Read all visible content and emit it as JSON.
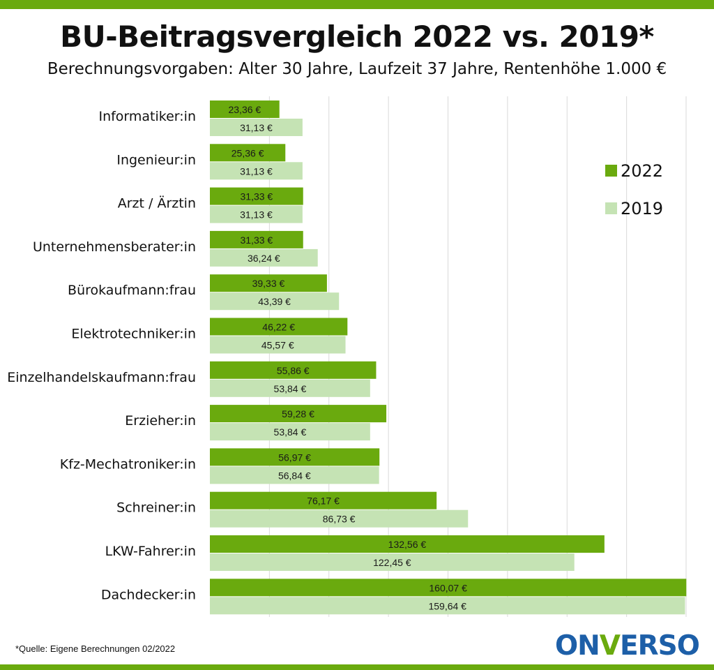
{
  "header": {
    "title": "BU-Beitragsvergleich 2022 vs. 2019*",
    "subtitle": "Berechnungsvorgaben: Alter 30 Jahre, Laufzeit 37 Jahre, Rentenhöhe 1.000 €"
  },
  "footnote": "*Quelle: Eigene Berechnungen 02/2022",
  "logo": {
    "part1": "ON",
    "part2": "V",
    "part3": "ERSO"
  },
  "colors": {
    "accent": "#6aaa0e",
    "series2022": "#6aaa0e",
    "series2019": "#c5e3b4",
    "logo_blue": "#1d5fa8"
  },
  "chart_data": {
    "type": "bar",
    "orientation": "horizontal",
    "title": "BU-Beitragsvergleich 2022 vs. 2019*",
    "subtitle": "Berechnungsvorgaben: Alter 30 Jahre, Laufzeit 37 Jahre, Rentenhöhe 1.000 €",
    "categories": [
      "Informatiker:in",
      "Ingenieur:in",
      "Arzt / Ärztin",
      "Unternehmensberater:in",
      "Bürokaufmann:frau",
      "Elektrotechniker:in",
      "Einzelhandelskaufmann:frau",
      "Erzieher:in",
      "Kfz-Mechatroniker:in",
      "Schreiner:in",
      "LKW-Fahrer:in",
      "Dachdecker:in"
    ],
    "series": [
      {
        "name": "2022",
        "color": "#6aaa0e",
        "values": [
          23.36,
          25.36,
          31.33,
          31.33,
          39.33,
          46.22,
          55.86,
          59.28,
          56.97,
          76.17,
          132.56,
          160.07
        ],
        "labels": [
          "23,36 €",
          "25,36 €",
          "31,33 €",
          "31,33 €",
          "39,33 €",
          "46,22 €",
          "55,86 €",
          "59,28 €",
          "56,97 €",
          "76,17 €",
          "132,56 €",
          "160,07 €"
        ]
      },
      {
        "name": "2019",
        "color": "#c5e3b4",
        "values": [
          31.13,
          31.13,
          31.13,
          36.24,
          43.39,
          45.57,
          53.84,
          53.84,
          56.84,
          86.73,
          122.45,
          159.64
        ],
        "labels": [
          "31,13 €",
          "31,13 €",
          "31,13 €",
          "36,24 €",
          "43,39 €",
          "45,57 €",
          "53,84 €",
          "53,84 €",
          "56,84 €",
          "86,73 €",
          "122,45 €",
          "159,64 €"
        ]
      }
    ],
    "xlim": [
      0,
      160
    ],
    "grid": true,
    "legend_position": "top-right"
  }
}
